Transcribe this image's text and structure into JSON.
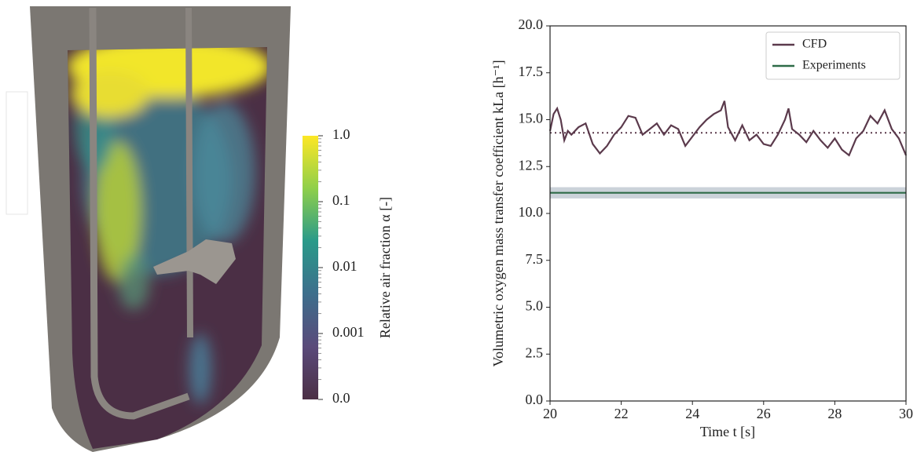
{
  "chart_data": [
    {
      "type": "colorbar",
      "label": "Relative air fraction α [-]",
      "ticks": [
        "1.0",
        "0.1",
        "0.01",
        "0.001",
        "0.0"
      ],
      "colors": [
        "#fde725",
        "#8fcf4a",
        "#2a9a8a",
        "#3d6e8c",
        "#5a4a7a",
        "#4b2f45"
      ]
    },
    {
      "type": "line",
      "xlabel": "Time t [s]",
      "ylabel": "Volumetric oxygen mass transfer coefficient kLa [h⁻¹]",
      "xlim": [
        20,
        30
      ],
      "ylim": [
        0,
        20
      ],
      "xticks": [
        20,
        22,
        24,
        26,
        28,
        30
      ],
      "yticks": [
        {
          "value": 0,
          "label": "0.0"
        },
        {
          "value": 2.5,
          "label": "2.5"
        },
        {
          "value": 5,
          "label": "5.0"
        },
        {
          "value": 7.5,
          "label": "7.5"
        },
        {
          "value": 10,
          "label": "10.0"
        },
        {
          "value": 12.5,
          "label": "12.5"
        },
        {
          "value": 15,
          "label": "15.0"
        },
        {
          "value": 17.5,
          "label": "17.5"
        },
        {
          "value": 20,
          "label": "20.0"
        }
      ],
      "legend": "upper right",
      "series": [
        {
          "name": "CFD",
          "color": "#5b3a4c",
          "mean": 14.3,
          "x": [
            20,
            20.1,
            20.2,
            20.3,
            20.4,
            20.5,
            20.6,
            20.8,
            21,
            21.2,
            21.4,
            21.6,
            21.8,
            22,
            22.2,
            22.4,
            22.6,
            22.8,
            23,
            23.2,
            23.4,
            23.6,
            23.8,
            24,
            24.2,
            24.4,
            24.6,
            24.8,
            24.9,
            25,
            25.2,
            25.4,
            25.6,
            25.8,
            26,
            26.2,
            26.4,
            26.6,
            26.7,
            26.8,
            27,
            27.2,
            27.4,
            27.6,
            27.8,
            28,
            28.2,
            28.4,
            28.6,
            28.8,
            29,
            29.2,
            29.4,
            29.6,
            29.8,
            30
          ],
          "values": [
            14.4,
            15.3,
            15.6,
            15,
            13.9,
            14.4,
            14.2,
            14.6,
            14.8,
            13.7,
            13.2,
            13.6,
            14.2,
            14.6,
            15.2,
            15.1,
            14.2,
            14.5,
            14.8,
            14.2,
            14.7,
            14.5,
            13.6,
            14.1,
            14.6,
            15,
            15.3,
            15.5,
            16,
            14.6,
            13.9,
            14.7,
            13.9,
            14.2,
            13.7,
            13.6,
            14.2,
            15,
            15.6,
            14.5,
            14.2,
            13.8,
            14.4,
            13.9,
            13.5,
            14,
            13.4,
            13.1,
            14,
            14.4,
            15.2,
            14.8,
            15.5,
            14.5,
            14,
            13.1
          ]
        },
        {
          "name": "Experiments",
          "color": "#2e6b47",
          "band": [
            10.8,
            11.4
          ],
          "x": [
            20,
            30
          ],
          "values": [
            11.1,
            11.1
          ]
        }
      ]
    }
  ]
}
